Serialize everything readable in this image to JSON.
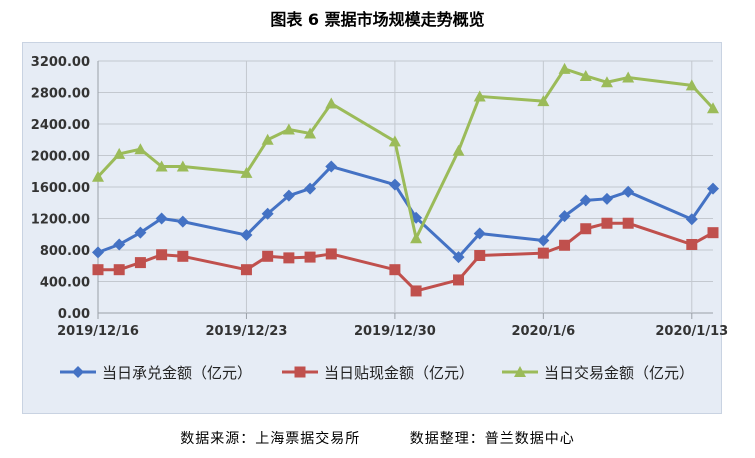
{
  "title": "图表 6  票据市场规模走势概览",
  "source": {
    "data_source": "数据来源：上海票据交易所",
    "data_compile": "数据整理：普兰数据中心"
  },
  "colors": {
    "blue": "#4472c4",
    "red": "#c0504d",
    "green": "#9bbb59",
    "panel_bg": "#e6ecf5"
  },
  "chart_data": {
    "type": "line",
    "title": "图表 6  票据市场规模走势概览",
    "xlabel": "",
    "ylabel": "",
    "ylim": [
      0,
      3200
    ],
    "yticks": [
      "0.00",
      "400.00",
      "800.00",
      "1200.00",
      "1600.00",
      "2000.00",
      "2400.00",
      "2800.00",
      "3200.00"
    ],
    "x_axis": {
      "start": "2019/12/16",
      "end": "2020/1/14",
      "tick_labels": [
        "2019/12/16",
        "2019/12/23",
        "2019/12/30",
        "2020/1/6",
        "2020/1/13"
      ],
      "tick_dates": [
        "2019-12-16",
        "2019-12-23",
        "2019-12-30",
        "2020-01-06",
        "2020-01-13"
      ]
    },
    "grid": true,
    "legend": "bottom",
    "series": [
      {
        "name": "当日承兑金额（亿元）",
        "color": "#4472c4",
        "marker": "diamond",
        "points": [
          {
            "date": "2019-12-16",
            "value": 770
          },
          {
            "date": "2019-12-17",
            "value": 870
          },
          {
            "date": "2019-12-18",
            "value": 1020
          },
          {
            "date": "2019-12-19",
            "value": 1200
          },
          {
            "date": "2019-12-20",
            "value": 1160
          },
          {
            "date": "2019-12-23",
            "value": 990
          },
          {
            "date": "2019-12-24",
            "value": 1260
          },
          {
            "date": "2019-12-25",
            "value": 1490
          },
          {
            "date": "2019-12-26",
            "value": 1580
          },
          {
            "date": "2019-12-27",
            "value": 1860
          },
          {
            "date": "2019-12-30",
            "value": 1630
          },
          {
            "date": "2019-12-31",
            "value": 1210
          },
          {
            "date": "2020-01-02",
            "value": 710
          },
          {
            "date": "2020-01-03",
            "value": 1010
          },
          {
            "date": "2020-01-06",
            "value": 920
          },
          {
            "date": "2020-01-07",
            "value": 1230
          },
          {
            "date": "2020-01-08",
            "value": 1430
          },
          {
            "date": "2020-01-09",
            "value": 1450
          },
          {
            "date": "2020-01-10",
            "value": 1540
          },
          {
            "date": "2020-01-13",
            "value": 1190
          },
          {
            "date": "2020-01-14",
            "value": 1580
          }
        ]
      },
      {
        "name": "当日贴现金额（亿元）",
        "color": "#c0504d",
        "marker": "square",
        "points": [
          {
            "date": "2019-12-16",
            "value": 550
          },
          {
            "date": "2019-12-17",
            "value": 550
          },
          {
            "date": "2019-12-18",
            "value": 640
          },
          {
            "date": "2019-12-19",
            "value": 740
          },
          {
            "date": "2019-12-20",
            "value": 720
          },
          {
            "date": "2019-12-23",
            "value": 550
          },
          {
            "date": "2019-12-24",
            "value": 720
          },
          {
            "date": "2019-12-25",
            "value": 700
          },
          {
            "date": "2019-12-26",
            "value": 710
          },
          {
            "date": "2019-12-27",
            "value": 750
          },
          {
            "date": "2019-12-30",
            "value": 550
          },
          {
            "date": "2019-12-31",
            "value": 280
          },
          {
            "date": "2020-01-02",
            "value": 420
          },
          {
            "date": "2020-01-03",
            "value": 730
          },
          {
            "date": "2020-01-06",
            "value": 760
          },
          {
            "date": "2020-01-07",
            "value": 860
          },
          {
            "date": "2020-01-08",
            "value": 1070
          },
          {
            "date": "2020-01-09",
            "value": 1140
          },
          {
            "date": "2020-01-10",
            "value": 1140
          },
          {
            "date": "2020-01-13",
            "value": 870
          },
          {
            "date": "2020-01-14",
            "value": 1020
          }
        ]
      },
      {
        "name": "当日交易金额（亿元）",
        "color": "#9bbb59",
        "marker": "triangle",
        "points": [
          {
            "date": "2019-12-16",
            "value": 1730
          },
          {
            "date": "2019-12-17",
            "value": 2020
          },
          {
            "date": "2019-12-18",
            "value": 2080
          },
          {
            "date": "2019-12-19",
            "value": 1860
          },
          {
            "date": "2019-12-20",
            "value": 1860
          },
          {
            "date": "2019-12-23",
            "value": 1780
          },
          {
            "date": "2019-12-24",
            "value": 2200
          },
          {
            "date": "2019-12-25",
            "value": 2330
          },
          {
            "date": "2019-12-26",
            "value": 2280
          },
          {
            "date": "2019-12-27",
            "value": 2660
          },
          {
            "date": "2019-12-30",
            "value": 2180
          },
          {
            "date": "2019-12-31",
            "value": 950
          },
          {
            "date": "2020-01-02",
            "value": 2060
          },
          {
            "date": "2020-01-03",
            "value": 2750
          },
          {
            "date": "2020-01-06",
            "value": 2690
          },
          {
            "date": "2020-01-07",
            "value": 3100
          },
          {
            "date": "2020-01-08",
            "value": 3010
          },
          {
            "date": "2020-01-09",
            "value": 2930
          },
          {
            "date": "2020-01-10",
            "value": 2990
          },
          {
            "date": "2020-01-13",
            "value": 2890
          },
          {
            "date": "2020-01-14",
            "value": 2600
          }
        ]
      }
    ]
  }
}
